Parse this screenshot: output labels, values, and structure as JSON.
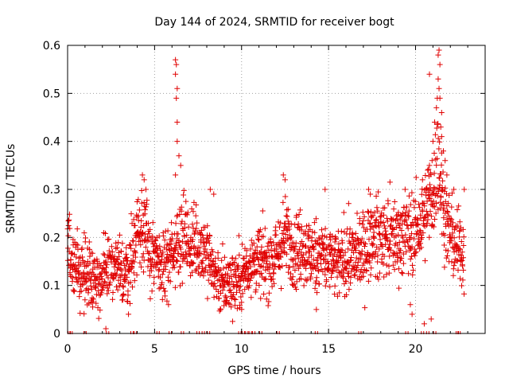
{
  "chart_data": {
    "type": "scatter",
    "title": "Day 144 of 2024, SRMTID for receiver bogt",
    "xlabel": "GPS time / hours",
    "ylabel": "SRMTID / TECUs",
    "xlim": [
      0,
      24
    ],
    "ylim": [
      0,
      0.6
    ],
    "x_ticks": [
      "0",
      "5",
      "10",
      "15",
      "20"
    ],
    "y_ticks": [
      "0",
      "0.1",
      "0.2",
      "0.3",
      "0.4",
      "0.5",
      "0.6"
    ],
    "grid": true,
    "marker": "plus",
    "color": "#e00000",
    "series": [
      {
        "name": "SRMTID",
        "trend": [
          [
            0.0,
            0.18
          ],
          [
            0.3,
            0.14
          ],
          [
            0.6,
            0.13
          ],
          [
            1.0,
            0.13
          ],
          [
            1.5,
            0.12
          ],
          [
            2.0,
            0.11
          ],
          [
            2.5,
            0.14
          ],
          [
            3.0,
            0.13
          ],
          [
            3.5,
            0.13
          ],
          [
            3.8,
            0.18
          ],
          [
            4.0,
            0.21
          ],
          [
            4.3,
            0.24
          ],
          [
            4.6,
            0.18
          ],
          [
            5.0,
            0.15
          ],
          [
            5.5,
            0.14
          ],
          [
            6.0,
            0.16
          ],
          [
            6.3,
            0.2
          ],
          [
            6.7,
            0.21
          ],
          [
            7.0,
            0.18
          ],
          [
            7.5,
            0.19
          ],
          [
            8.0,
            0.17
          ],
          [
            8.5,
            0.12
          ],
          [
            9.0,
            0.1
          ],
          [
            9.5,
            0.11
          ],
          [
            10.0,
            0.12
          ],
          [
            10.5,
            0.15
          ],
          [
            11.0,
            0.15
          ],
          [
            11.5,
            0.15
          ],
          [
            12.0,
            0.16
          ],
          [
            12.5,
            0.2
          ],
          [
            13.0,
            0.18
          ],
          [
            13.5,
            0.18
          ],
          [
            14.0,
            0.16
          ],
          [
            14.5,
            0.17
          ],
          [
            15.0,
            0.15
          ],
          [
            15.5,
            0.14
          ],
          [
            16.0,
            0.16
          ],
          [
            16.5,
            0.16
          ],
          [
            17.0,
            0.17
          ],
          [
            17.5,
            0.2
          ],
          [
            18.0,
            0.2
          ],
          [
            18.5,
            0.2
          ],
          [
            19.0,
            0.2
          ],
          [
            19.5,
            0.21
          ],
          [
            20.0,
            0.21
          ],
          [
            20.5,
            0.24
          ],
          [
            21.0,
            0.29
          ],
          [
            21.3,
            0.37
          ],
          [
            21.6,
            0.26
          ],
          [
            22.0,
            0.2
          ],
          [
            22.5,
            0.18
          ],
          [
            22.8,
            0.17
          ]
        ],
        "spread": 0.05,
        "spikes": [
          [
            6.2,
            0.57
          ],
          [
            6.25,
            0.56
          ],
          [
            6.2,
            0.54
          ],
          [
            6.3,
            0.51
          ],
          [
            6.25,
            0.49
          ],
          [
            6.3,
            0.44
          ],
          [
            6.3,
            0.4
          ],
          [
            6.4,
            0.37
          ],
          [
            6.5,
            0.35
          ],
          [
            6.2,
            0.33
          ],
          [
            4.3,
            0.33
          ],
          [
            4.4,
            0.32
          ],
          [
            4.5,
            0.3
          ],
          [
            12.4,
            0.33
          ],
          [
            12.5,
            0.32
          ],
          [
            14.8,
            0.3
          ],
          [
            17.3,
            0.3
          ],
          [
            17.4,
            0.29
          ],
          [
            8.2,
            0.3
          ],
          [
            8.4,
            0.29
          ],
          [
            20.4,
            0.32
          ],
          [
            20.7,
            0.34
          ],
          [
            20.8,
            0.35
          ],
          [
            20.95,
            0.36
          ],
          [
            21.0,
            0.4
          ],
          [
            21.1,
            0.44
          ],
          [
            21.2,
            0.47
          ],
          [
            21.25,
            0.49
          ],
          [
            21.3,
            0.58
          ],
          [
            21.35,
            0.59
          ],
          [
            21.4,
            0.56
          ],
          [
            21.3,
            0.53
          ],
          [
            21.35,
            0.51
          ],
          [
            21.4,
            0.49
          ],
          [
            21.5,
            0.46
          ],
          [
            21.45,
            0.43
          ],
          [
            21.5,
            0.41
          ],
          [
            21.6,
            0.38
          ],
          [
            21.7,
            0.36
          ],
          [
            21.8,
            0.33
          ],
          [
            20.8,
            0.54
          ],
          [
            22.2,
            0.3
          ],
          [
            22.8,
            0.3
          ],
          [
            19.4,
            0.3
          ],
          [
            2.2,
            0.01
          ],
          [
            20.5,
            0.02
          ],
          [
            20.9,
            0.03
          ],
          [
            19.8,
            0.04
          ],
          [
            19.7,
            0.06
          ],
          [
            14.3,
            0.05
          ],
          [
            8.8,
            0.05
          ],
          [
            3.5,
            0.04
          ],
          [
            5.8,
            0.06
          ],
          [
            1.0,
            0.07
          ]
        ],
        "zero_markers": [
          0.1,
          0.2,
          1.0,
          2.3,
          3.7,
          3.9,
          5.2,
          5.9,
          6.6,
          7.5,
          7.8,
          8.1,
          9.9,
          10.1,
          10.3,
          10.5,
          10.7,
          11.1,
          12.1,
          14.3,
          16.8,
          19.5,
          20.4,
          20.7,
          21.1,
          22.4,
          22.5
        ]
      }
    ]
  }
}
